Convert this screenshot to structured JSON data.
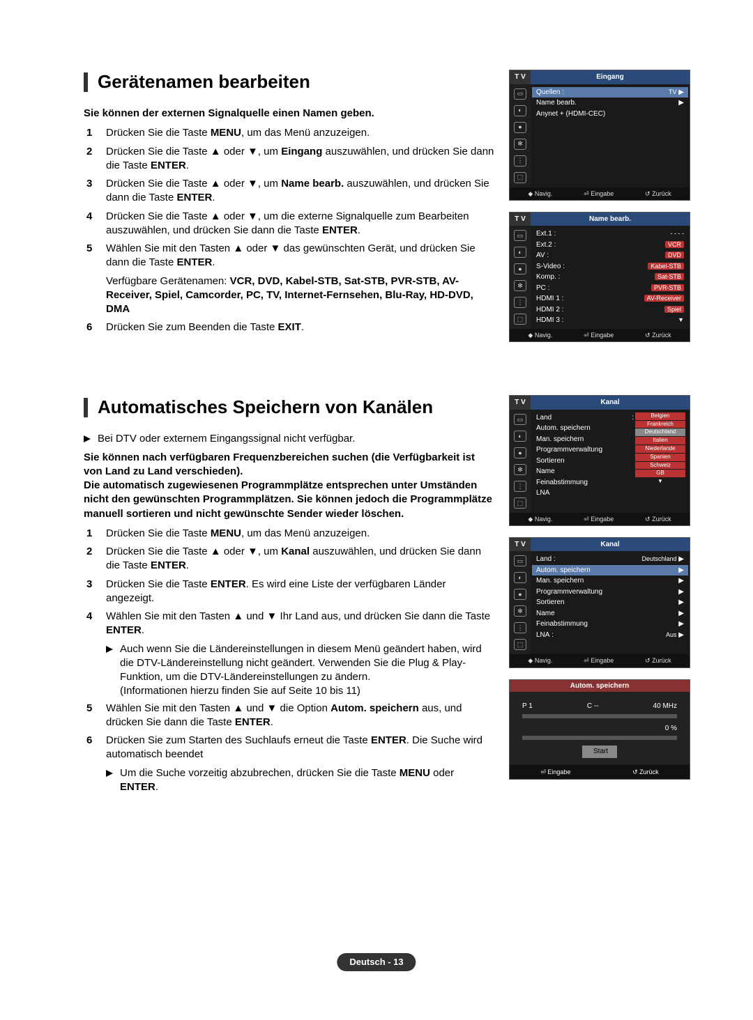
{
  "section1": {
    "title": "Gerätenamen bearbeiten",
    "intro": "Sie können der externen Signalquelle einen Namen geben.",
    "steps": [
      {
        "n": "1",
        "html": "Drücken Sie die Taste <b>MENU</b>, um das Menü anzuzeigen."
      },
      {
        "n": "2",
        "html": "Drücken Sie die Taste ▲ oder ▼, um <b>Eingang</b> auszuwählen, und drücken Sie dann die Taste <b>ENTER</b>."
      },
      {
        "n": "3",
        "html": "Drücken Sie die Taste ▲ oder ▼, um <b>Name bearb.</b> auszuwählen, und drücken Sie dann die Taste <b>ENTER</b>."
      },
      {
        "n": "4",
        "html": "Drücken Sie die Taste ▲ oder ▼, um die externe Signalquelle zum Bearbeiten auszuwählen, und drücken Sie dann die Taste <b>ENTER</b>."
      },
      {
        "n": "5",
        "html": "Wählen Sie mit den Tasten ▲ oder ▼ das gewünschten Gerät, und drücken Sie dann die Taste <b>ENTER</b>."
      },
      {
        "n": "",
        "html": "Verfügbare Gerätenamen: <b>VCR, DVD, Kabel-STB, Sat-STB, PVR-STB, AV-Receiver, Spiel, Camcorder, PC, TV, Internet-Fernsehen, Blu-Ray, HD-DVD, DMA</b>"
      },
      {
        "n": "6",
        "html": "Drücken Sie zum Beenden die Taste <b>EXIT</b>."
      }
    ]
  },
  "screen1a": {
    "label": "T V",
    "header": "Eingang",
    "rows": [
      {
        "k": "Quellen",
        "sep": ":",
        "v": "TV",
        "arrow": true,
        "hlrow": true
      },
      {
        "k": "Name bearb.",
        "v": "",
        "arrow": true
      },
      {
        "k": "Anynet + (HDMI-CEC)",
        "v": ""
      }
    ],
    "footer": [
      "◆ Navig.",
      "⏎ Eingabe",
      "↺ Zurück"
    ]
  },
  "screen1b": {
    "label": "T V",
    "header": "Name bearb.",
    "rows": [
      {
        "k": "Ext.1",
        "sep": ":",
        "v": "- - - -"
      },
      {
        "k": "Ext.2",
        "sep": ":",
        "v": "VCR",
        "hl": true
      },
      {
        "k": "AV",
        "sep": ":",
        "v": "DVD",
        "hl": true
      },
      {
        "k": "S-Video",
        "sep": ":",
        "v": "Kabel-STB",
        "hl": true
      },
      {
        "k": "Komp.",
        "sep": ":",
        "v": "Sat-STB",
        "hl": true
      },
      {
        "k": "PC",
        "sep": ":",
        "v": "PVR-STB",
        "hl": true
      },
      {
        "k": "HDMI 1",
        "sep": ":",
        "v": "AV-Receiver",
        "hl": true
      },
      {
        "k": "HDMI 2",
        "sep": ":",
        "v": "Spiel",
        "hl": true
      },
      {
        "k": "HDMI 3",
        "sep": ":",
        "v": "▼"
      }
    ],
    "footer": [
      "◆ Navig.",
      "⏎ Eingabe",
      "↺ Zurück"
    ]
  },
  "section2": {
    "title": "Automatisches Speichern von Kanälen",
    "topnote": "Bei DTV oder externem Eingangssignal nicht verfügbar.",
    "intro": "Sie können nach verfügbaren Frequenzbereichen suchen (die Verfügbarkeit ist von Land zu Land verschieden).\nDie automatisch zugewiesenen Programmplätze entsprechen unter Umständen nicht den gewünschten Programmplätzen. Sie können jedoch die Programmplätze manuell sortieren und nicht gewünschte Sender wieder löschen.",
    "steps": [
      {
        "n": "1",
        "html": "Drücken Sie die Taste <b>MENU</b>, um das Menü anzuzeigen."
      },
      {
        "n": "2",
        "html": "Drücken Sie die Taste ▲ oder ▼, um <b>Kanal</b> auszuwählen, und drücken Sie dann die Taste <b>ENTER</b>."
      },
      {
        "n": "3",
        "html": "Drücken Sie die Taste <b>ENTER</b>. Es wird eine Liste der verfügbaren Länder angezeigt."
      },
      {
        "n": "4",
        "html": "Wählen Sie mit den Tasten ▲ und ▼ Ihr Land aus, und drücken Sie dann die Taste <b>ENTER</b>."
      }
    ],
    "subnote4": "Auch wenn Sie die Ländereinstellungen in diesem Menü geändert haben, wird die DTV-Ländereinstellung nicht geändert. Verwenden Sie die Plug & Play-Funktion, um die DTV-Ländereinstellungen zu ändern.\n(Informationen hierzu finden Sie auf Seite 10 bis 11)",
    "steps2": [
      {
        "n": "5",
        "html": "Wählen Sie mit den Tasten ▲ und ▼ die Option <b>Autom. speichern</b> aus, und drücken Sie dann die Taste <b>ENTER</b>."
      },
      {
        "n": "6",
        "html": "Drücken Sie zum Starten des Suchlaufs erneut die Taste <b>ENTER</b>. Die Suche wird automatisch beendet"
      }
    ],
    "subnote6": "Um die Suche vorzeitig abzubrechen, drücken Sie die Taste <b>MENU</b> oder <b>ENTER</b>."
  },
  "screen2a": {
    "label": "T V",
    "header": "Kanal",
    "rows": [
      {
        "k": "Land",
        "sep": ":",
        "countries": [
          "Belgien",
          "Frankreich",
          "Deutschland",
          "Italien",
          "Niederlande",
          "Spanien",
          "Schweiz",
          "GB"
        ]
      },
      {
        "k": "Autom. speichern"
      },
      {
        "k": "Man. speichern"
      },
      {
        "k": "Programmverwaltung"
      },
      {
        "k": "Sortieren"
      },
      {
        "k": "Name"
      },
      {
        "k": "Feinabstimmung"
      },
      {
        "k": "LNA"
      }
    ],
    "footer": [
      "◆ Navig.",
      "⏎ Eingabe",
      "↺ Zurück"
    ]
  },
  "screen2b": {
    "label": "T V",
    "header": "Kanal",
    "rows": [
      {
        "k": "Land",
        "sep": ":",
        "v": "Deutschland",
        "arrow": true
      },
      {
        "k": "Autom. speichern",
        "arrow": true,
        "hlrow": true
      },
      {
        "k": "Man. speichern",
        "arrow": true
      },
      {
        "k": "Programmverwaltung",
        "arrow": true
      },
      {
        "k": "Sortieren",
        "arrow": true
      },
      {
        "k": "Name",
        "arrow": true
      },
      {
        "k": "Feinabstimmung",
        "arrow": true
      },
      {
        "k": "LNA",
        "sep": ":",
        "v": "Aus",
        "arrow": true
      }
    ],
    "footer": [
      "◆ Navig.",
      "⏎ Eingabe",
      "↺ Zurück"
    ]
  },
  "scan": {
    "header": "Autom. speichern",
    "p": "P  1",
    "c": "C    --",
    "mhz": "40 MHz",
    "pct": "0  %",
    "btn": "Start",
    "footer": [
      "⏎ Eingabe",
      "↺ Zurück"
    ]
  },
  "footer": "Deutsch - 13"
}
